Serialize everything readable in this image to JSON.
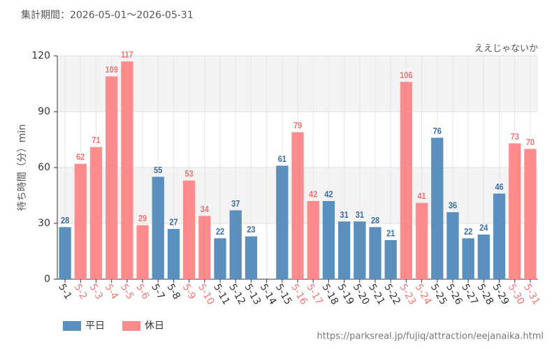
{
  "chart_data": {
    "type": "bar",
    "period": "集計期間：2026-05-01～2026-05-31",
    "attraction": "ええじゃないか",
    "y_label": "待ち時間（分）min",
    "source": "https://parksreal.jp/fujiq/attraction/eejanaika.html",
    "categories": [
      "5-1",
      "5-2",
      "5-3",
      "5-4",
      "5-5",
      "5-6",
      "5-7",
      "5-8",
      "5-9",
      "5-10",
      "5-11",
      "5-12",
      "5-13",
      "5-14",
      "5-15",
      "5-16",
      "5-17",
      "5-18",
      "5-19",
      "5-20",
      "5-21",
      "5-22",
      "5-23",
      "5-24",
      "5-25",
      "5-26",
      "5-27",
      "5-28",
      "5-29",
      "5-30",
      "5-31"
    ],
    "series": [
      {
        "name": "平日",
        "color": "#5b8fbd",
        "label_color": "#3f6f9c",
        "values": [
          28,
          null,
          null,
          null,
          null,
          null,
          55,
          27,
          null,
          null,
          22,
          37,
          23,
          null,
          61,
          null,
          null,
          42,
          31,
          31,
          28,
          21,
          null,
          null,
          76,
          36,
          22,
          24,
          46,
          null,
          null
        ]
      },
      {
        "name": "休日",
        "color": "#ff8c8c",
        "label_color": "#f07575",
        "values": [
          null,
          62,
          71,
          109,
          117,
          29,
          null,
          null,
          53,
          34,
          null,
          null,
          null,
          null,
          null,
          79,
          42,
          null,
          null,
          null,
          null,
          null,
          106,
          41,
          null,
          null,
          null,
          null,
          null,
          73,
          70
        ]
      }
    ],
    "ylim": [
      0,
      120
    ],
    "yticks": [
      0,
      30,
      60,
      90,
      120
    ],
    "grid": true
  }
}
